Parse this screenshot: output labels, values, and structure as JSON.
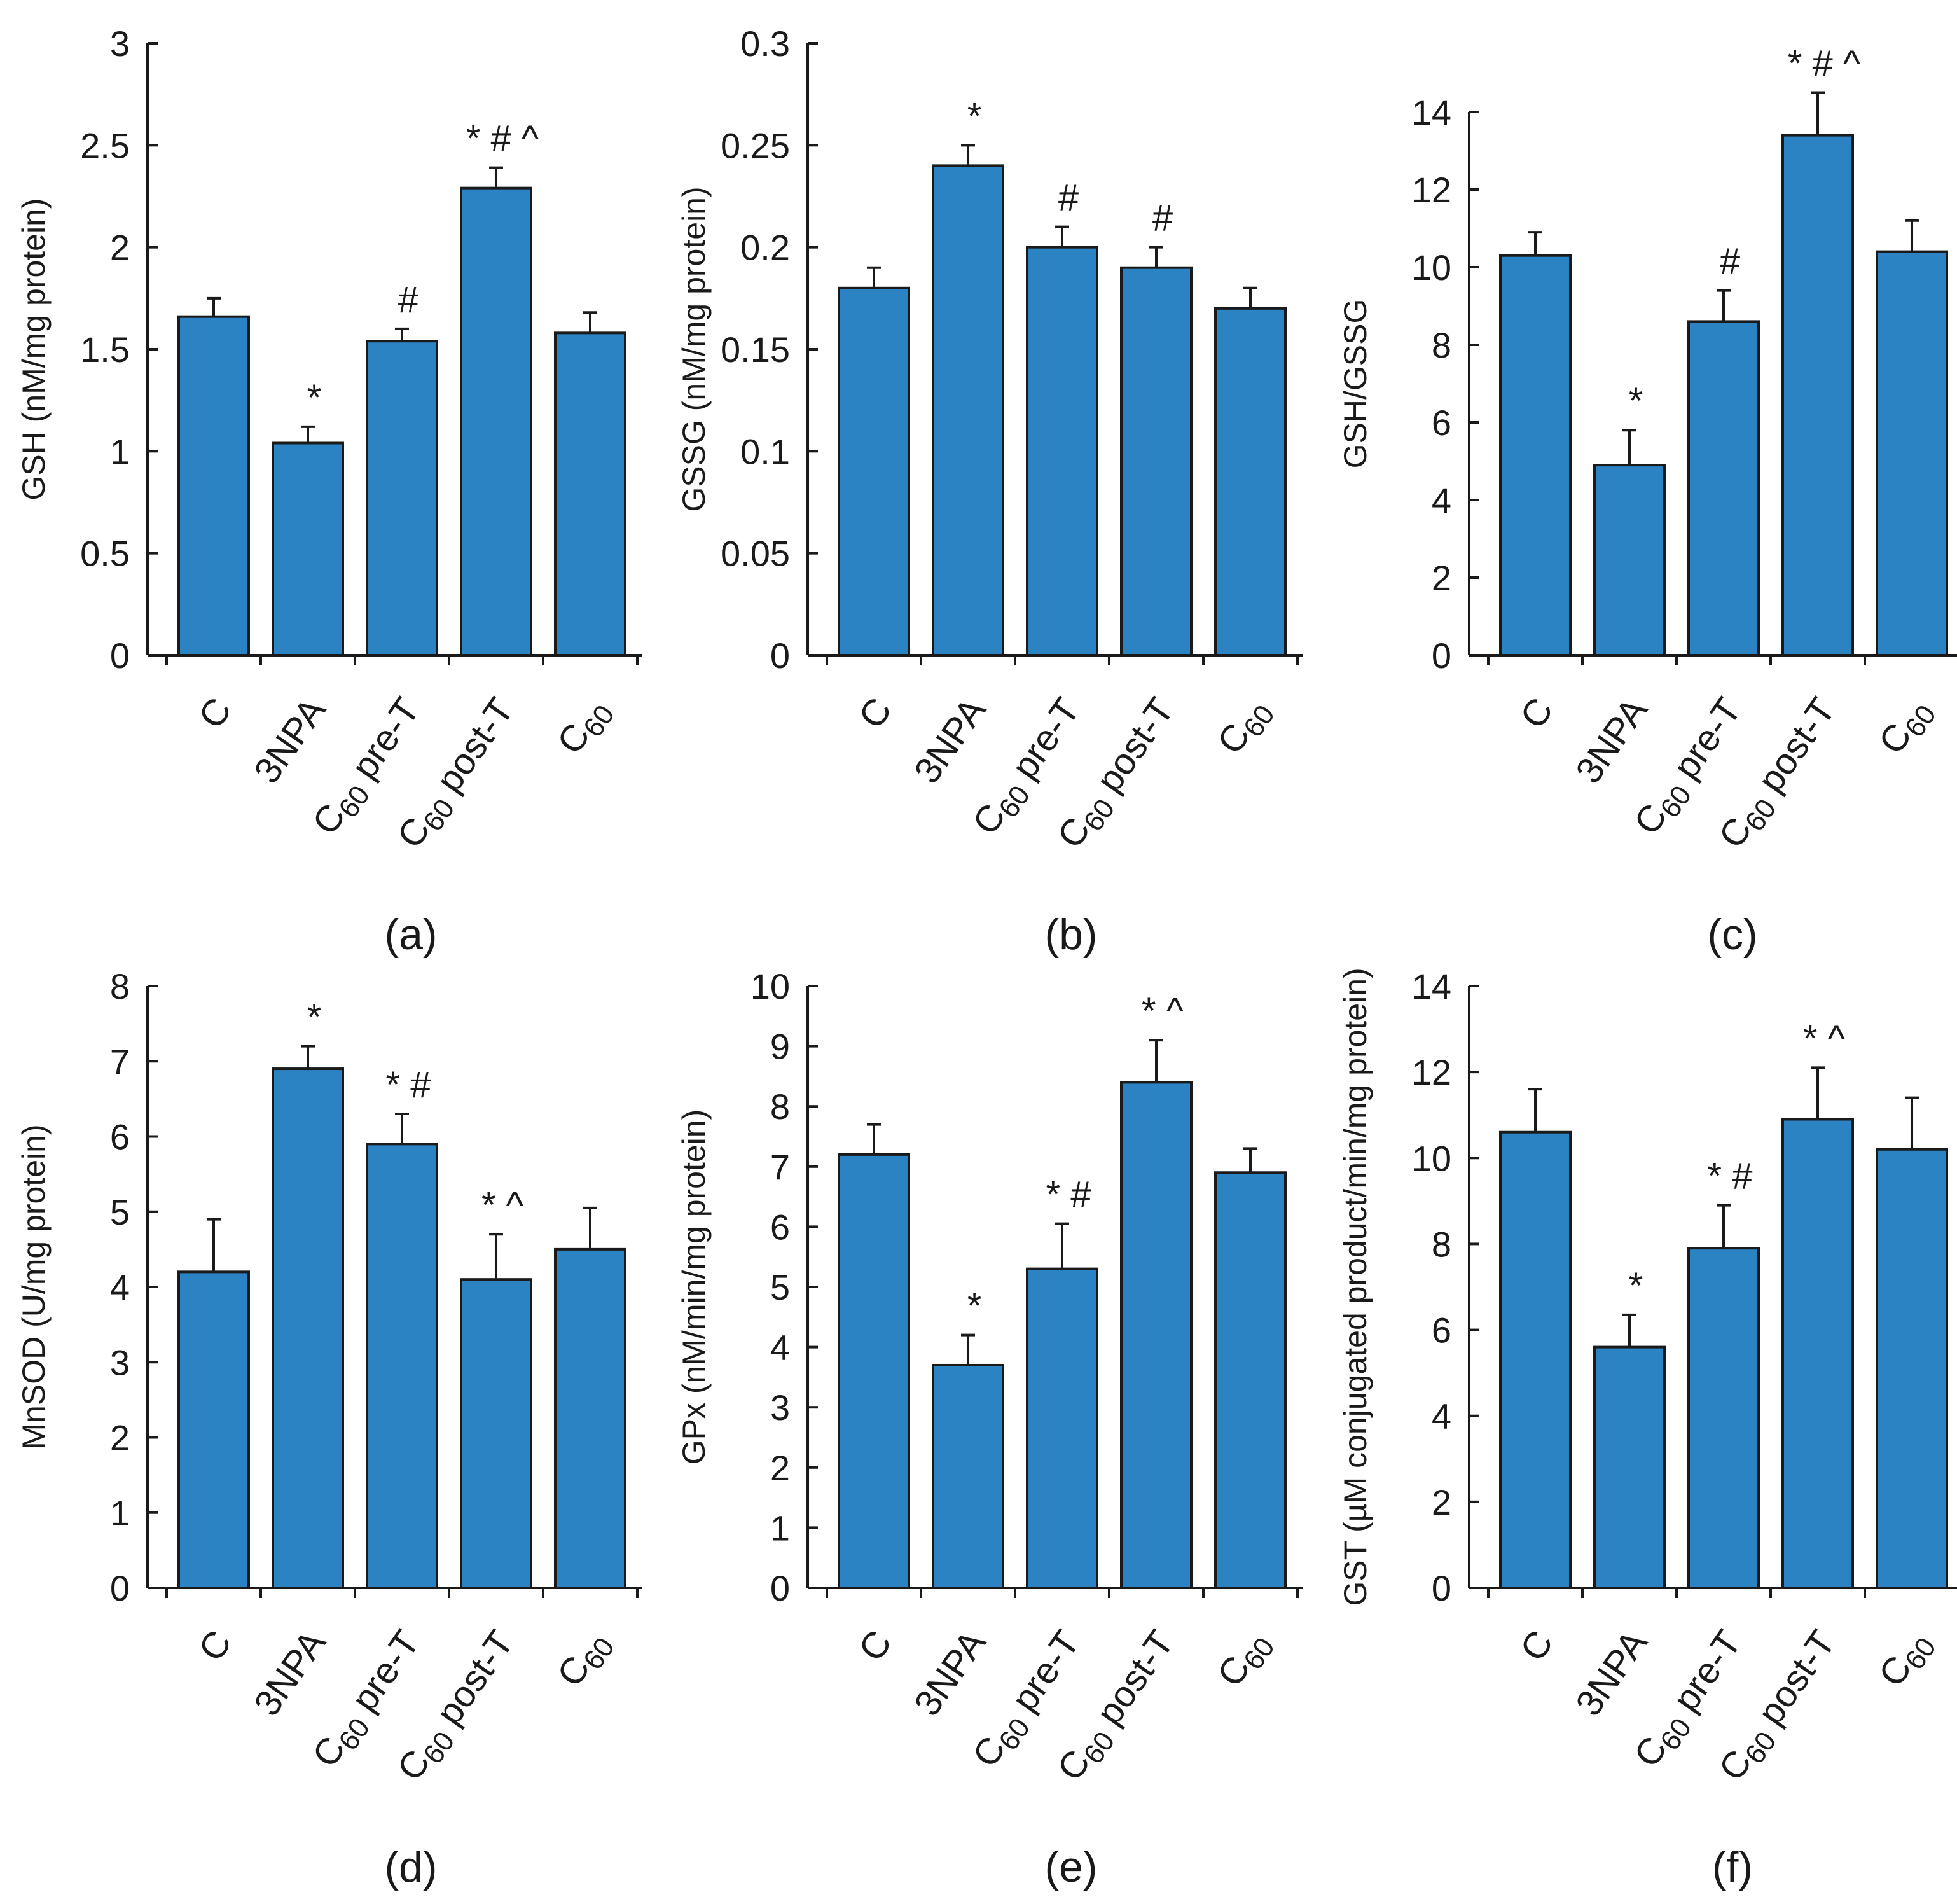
{
  "bar_color": "#2b83c4",
  "axis_color": "#1a1a1a",
  "chart_data": [
    {
      "type": "bar",
      "panel_label": "(a)",
      "ylabel": "GSH (nM/mg protein)",
      "ylim": [
        0,
        3
      ],
      "yticks": [
        "0",
        "0.5",
        "1",
        "1.5",
        "2",
        "2.5",
        "3"
      ],
      "yticks_values": [
        0,
        0.5,
        1,
        1.5,
        2,
        2.5,
        3
      ],
      "categories": [
        "C",
        "3NPA",
        "C60 pre-T",
        "C60 post-T",
        "C60"
      ],
      "values": [
        1.66,
        1.04,
        1.54,
        2.29,
        1.58
      ],
      "errors": [
        0.09,
        0.08,
        0.06,
        0.1,
        0.1
      ],
      "annotations": [
        "",
        "*",
        "#",
        "* # ^",
        ""
      ]
    },
    {
      "type": "bar",
      "panel_label": "(b)",
      "ylabel": "GSSG (nM/mg protein)",
      "ylim": [
        0,
        0.3
      ],
      "yticks": [
        "0",
        "0.05",
        "0.1",
        "0.15",
        "0.2",
        "0.25",
        "0.3"
      ],
      "yticks_values": [
        0,
        0.05,
        0.1,
        0.15,
        0.2,
        0.25,
        0.3
      ],
      "categories": [
        "C",
        "3NPA",
        "C60 pre-T",
        "C60 post-T",
        "C60"
      ],
      "values": [
        0.18,
        0.24,
        0.2,
        0.19,
        0.17
      ],
      "errors": [
        0.01,
        0.01,
        0.01,
        0.01,
        0.01
      ],
      "annotations": [
        "",
        "*",
        "#",
        "#",
        ""
      ]
    },
    {
      "type": "bar",
      "panel_label": "(c)",
      "ylabel": "GSH/GSSG",
      "ylim": [
        0,
        14
      ],
      "yticks": [
        "0",
        "2",
        "4",
        "6",
        "8",
        "10",
        "12",
        "14"
      ],
      "yticks_values": [
        0,
        2,
        4,
        6,
        8,
        10,
        12,
        14
      ],
      "categories": [
        "C",
        "3NPA",
        "C60 pre-T",
        "C60 post-T",
        "C60"
      ],
      "values": [
        10.3,
        4.9,
        8.6,
        13.4,
        10.4
      ],
      "errors": [
        0.6,
        0.9,
        0.8,
        1.1,
        0.8
      ],
      "annotations": [
        "",
        "*",
        "#",
        "* # ^",
        ""
      ]
    },
    {
      "type": "bar",
      "panel_label": "(d)",
      "ylabel": "MnSOD (U/mg protein)",
      "ylim": [
        0,
        8
      ],
      "yticks": [
        "0",
        "1",
        "2",
        "3",
        "4",
        "5",
        "6",
        "7",
        "8"
      ],
      "yticks_values": [
        0,
        1,
        2,
        3,
        4,
        5,
        6,
        7,
        8
      ],
      "categories": [
        "C",
        "3NPA",
        "C60 pre-T",
        "C60 post-T",
        "C60"
      ],
      "values": [
        4.2,
        6.9,
        5.9,
        4.1,
        4.5
      ],
      "errors": [
        0.7,
        0.3,
        0.4,
        0.6,
        0.55
      ],
      "annotations": [
        "",
        "*",
        "* #",
        "* ^",
        ""
      ]
    },
    {
      "type": "bar",
      "panel_label": "(e)",
      "ylabel": "GPx (nM/min/mg protein)",
      "ylim": [
        0,
        10
      ],
      "yticks": [
        "0",
        "1",
        "2",
        "3",
        "4",
        "5",
        "6",
        "7",
        "8",
        "9",
        "10"
      ],
      "yticks_values": [
        0,
        1,
        2,
        3,
        4,
        5,
        6,
        7,
        8,
        9,
        10
      ],
      "categories": [
        "C",
        "3NPA",
        "C60 pre-T",
        "C60 post-T",
        "C60"
      ],
      "values": [
        7.2,
        3.7,
        5.3,
        8.4,
        6.9
      ],
      "errors": [
        0.5,
        0.5,
        0.75,
        0.7,
        0.4
      ],
      "annotations": [
        "",
        "*",
        "* #",
        "* ^",
        ""
      ]
    },
    {
      "type": "bar",
      "panel_label": "(f)",
      "ylabel": "GST (µM conjugated product/min/mg protein)",
      "ylim": [
        0,
        14
      ],
      "yticks": [
        "0",
        "2",
        "4",
        "6",
        "8",
        "10",
        "12",
        "14"
      ],
      "yticks_values": [
        0,
        2,
        4,
        6,
        8,
        10,
        12,
        14
      ],
      "categories": [
        "C",
        "3NPA",
        "C60 pre-T",
        "C60 post-T",
        "C60"
      ],
      "values": [
        10.6,
        5.6,
        7.9,
        10.9,
        10.2
      ],
      "errors": [
        1.0,
        0.75,
        1.0,
        1.2,
        1.2
      ],
      "annotations": [
        "",
        "*",
        "* #",
        "* ^",
        ""
      ]
    }
  ]
}
